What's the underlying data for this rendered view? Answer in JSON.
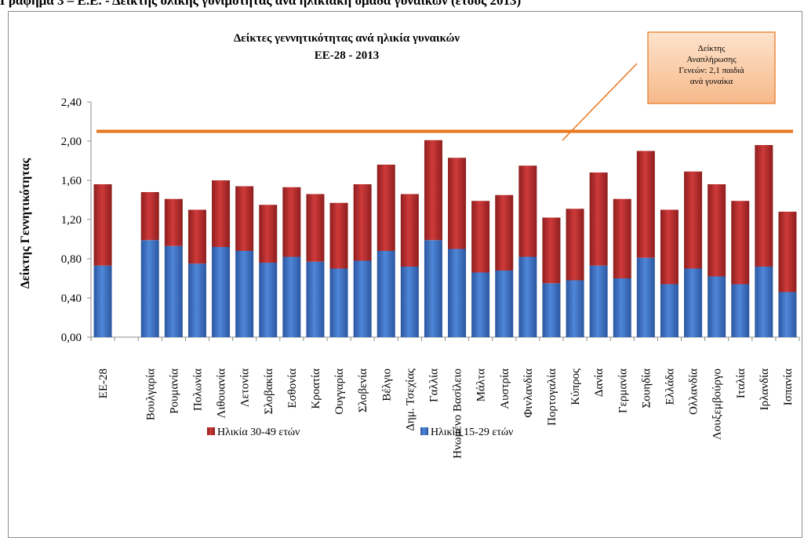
{
  "document": {
    "caption": "Γράφημα 3 – Ε.Ε. - Δείκτης ολικής γονιμότητας ανά ηλικιακή ομάδα γυναικών (έτους 2013)"
  },
  "chart_data": {
    "type": "bar",
    "stacked": true,
    "title": "Δείκτες γεννητικότητας ανά ηλικία γυναικών",
    "subtitle": "ΕΕ-28 - 2013",
    "xlabel": "",
    "ylabel": "Δείκτης Γεννητικότητας",
    "ylim": [
      0,
      2.4
    ],
    "yticks": [
      "0,00",
      "0,40",
      "0,80",
      "1,20",
      "1,60",
      "2,00",
      "2,40"
    ],
    "grid": false,
    "legend_position": "bottom",
    "categories": [
      "ΕΕ-28",
      "",
      "Βουλγαρία",
      "Ρουμανία",
      "Πολωνία",
      "Λιθουανία",
      "Λετονία",
      "Σλοβακία",
      "Εσθονία",
      "Κροατία",
      "Ουγγαρία",
      "Σλοβενία",
      "Βέλγιο",
      "Δημ. Τσεχίας",
      "Γαλλία",
      "Ηνωμένο Βασίλειο",
      "Μάλτα",
      "Αυστρία",
      "Φινλανδία",
      "Πορτογαλία",
      "Κύπρος",
      "Δανία",
      "Γερμανία",
      "Σουηδία",
      "Ελλάδα",
      "Ολλανδία",
      "Λουξεμβούργο",
      "Ιταλία",
      "Ιρλανδία",
      "Ισπανία"
    ],
    "series": [
      {
        "name": "Ηλικία 15-29 ετών",
        "color": "#3a6fc4",
        "values": [
          0.73,
          null,
          0.99,
          0.93,
          0.75,
          0.92,
          0.88,
          0.76,
          0.82,
          0.77,
          0.7,
          0.78,
          0.88,
          0.72,
          0.99,
          0.9,
          0.66,
          0.68,
          0.82,
          0.55,
          0.58,
          0.73,
          0.6,
          0.81,
          0.54,
          0.7,
          0.62,
          0.54,
          0.72,
          0.46
        ]
      },
      {
        "name": "Ηλικία 30-49 ετών",
        "color": "#b52a2a",
        "values": [
          0.83,
          null,
          0.49,
          0.48,
          0.55,
          0.68,
          0.66,
          0.59,
          0.71,
          0.69,
          0.67,
          0.78,
          0.88,
          0.74,
          1.02,
          0.93,
          0.73,
          0.77,
          0.93,
          0.67,
          0.73,
          0.95,
          0.81,
          1.09,
          0.76,
          0.99,
          0.94,
          0.85,
          1.24,
          0.82
        ]
      }
    ],
    "reference_line": {
      "value": 2.1,
      "color": "#e8761e"
    },
    "callout": {
      "lines": [
        "Δείκτης",
        "Αναπλήρωσης",
        "Γενεών: 2,1 παιδιά",
        "ανά γυναίκα"
      ]
    }
  }
}
